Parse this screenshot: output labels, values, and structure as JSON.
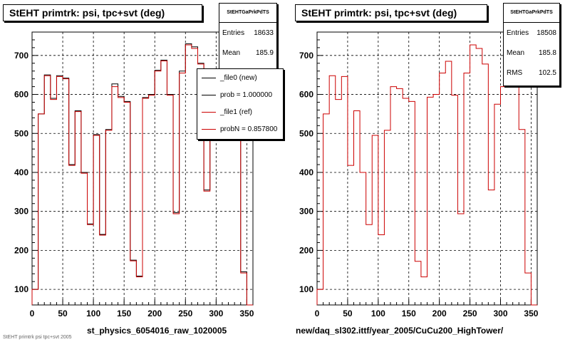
{
  "chart_data": [
    {
      "type": "line",
      "title": "StEHT primtrk: psi, tpc+svt (deg)",
      "xlabel": "st_physics_6054016_raw_1020005",
      "ylabel": "",
      "xlim": [
        0,
        360
      ],
      "ylim": [
        60,
        760
      ],
      "xticks": [
        0,
        50,
        100,
        150,
        200,
        250,
        300,
        350
      ],
      "yticks": [
        100,
        200,
        300,
        400,
        500,
        600,
        700
      ],
      "grid": true,
      "bin_width": 10,
      "x": [
        0,
        10,
        20,
        30,
        40,
        50,
        60,
        70,
        80,
        90,
        100,
        110,
        120,
        130,
        140,
        150,
        160,
        170,
        180,
        190,
        200,
        210,
        220,
        230,
        240,
        250,
        260,
        270,
        280,
        290,
        300,
        310,
        320,
        330,
        340,
        350
      ],
      "series": [
        {
          "name": "_file0 (new)",
          "color": "#000000",
          "values": [
            100,
            550,
            650,
            590,
            648,
            642,
            420,
            558,
            400,
            268,
            497,
            241,
            510,
            627,
            595,
            582,
            175,
            134,
            592,
            600,
            662,
            688,
            600,
            297,
            660,
            730,
            722,
            680,
            355,
            575,
            620,
            700,
            650,
            520,
            145,
            0
          ]
        },
        {
          "name": "_file1 (ref)",
          "color": "#cc0000",
          "values": [
            100,
            550,
            648,
            587,
            646,
            640,
            418,
            556,
            398,
            266,
            495,
            239,
            508,
            620,
            592,
            580,
            173,
            132,
            590,
            598,
            660,
            686,
            598,
            294,
            655,
            727,
            718,
            678,
            352,
            573,
            618,
            698,
            648,
            518,
            142,
            0
          ]
        }
      ],
      "legend": {
        "placement": "top-right",
        "entries": [
          "_file0 (new)",
          "prob = 1.000000",
          "_file1 (ref)",
          "probN = 0.857800"
        ]
      },
      "stats": {
        "name": "StEHTGaPrkPdTS",
        "entries_label": "Entries",
        "entries": "18633",
        "mean_label": "Mean",
        "mean": "185.9"
      }
    },
    {
      "type": "line",
      "title": "StEHT primtrk: psi, tpc+svt (deg)",
      "xlabel": "new/daq_sl302.ittf/year_2005/CuCu200_HighTower/",
      "ylabel": "",
      "xlim": [
        0,
        360
      ],
      "ylim": [
        60,
        760
      ],
      "xticks": [
        0,
        50,
        100,
        150,
        200,
        250,
        300,
        350
      ],
      "yticks": [
        100,
        200,
        300,
        400,
        500,
        600,
        700
      ],
      "grid": true,
      "bin_width": 10,
      "x": [
        0,
        10,
        20,
        30,
        40,
        50,
        60,
        70,
        80,
        90,
        100,
        110,
        120,
        130,
        140,
        150,
        160,
        170,
        180,
        190,
        200,
        210,
        220,
        230,
        240,
        250,
        260,
        270,
        280,
        290,
        300,
        310,
        320,
        330,
        340,
        350
      ],
      "series": [
        {
          "color": "#cc0000",
          "values": [
            100,
            550,
            648,
            587,
            646,
            418,
            558,
            400,
            266,
            495,
            240,
            508,
            620,
            615,
            590,
            582,
            172,
            132,
            593,
            600,
            655,
            685,
            598,
            294,
            655,
            727,
            718,
            678,
            355,
            575,
            620,
            700,
            650,
            510,
            142,
            0
          ]
        }
      ],
      "stats": {
        "name": "StEHTGaPrkPdTS",
        "entries_label": "Entries",
        "entries": "18508",
        "mean_label": "Mean",
        "mean": "185.8",
        "rms_label": "RMS",
        "rms": "102.5"
      }
    }
  ],
  "footer": "StEHT primtrk psi tpc+svt 2005"
}
